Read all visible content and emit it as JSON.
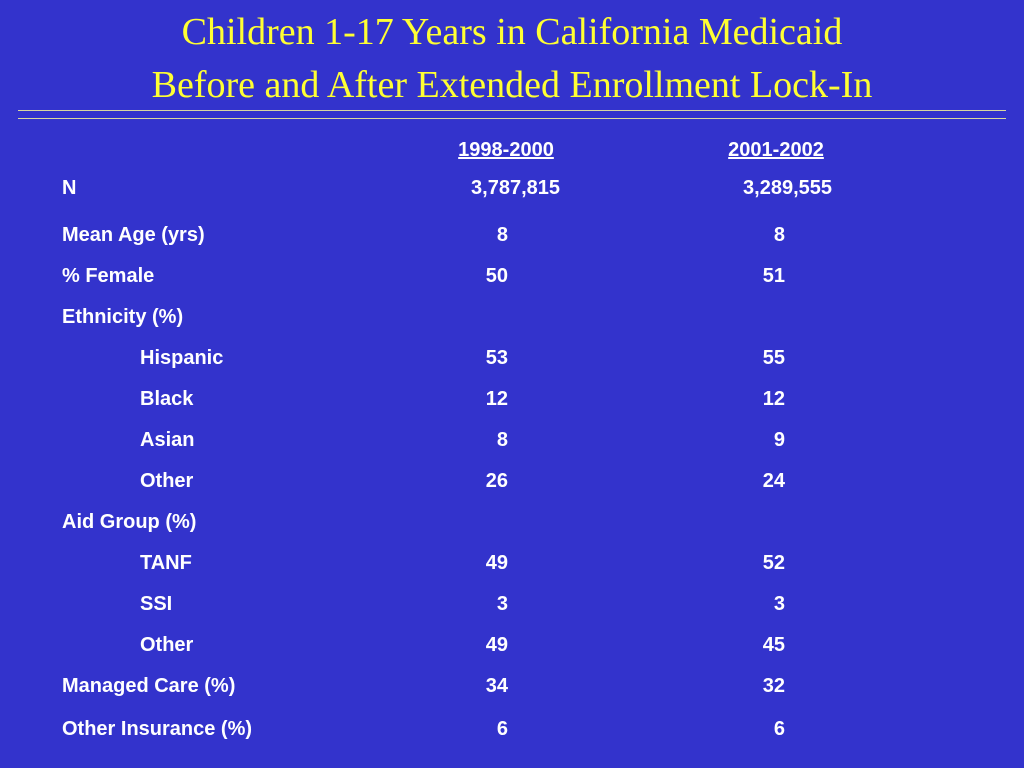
{
  "title": {
    "line1": "Children 1-17 Years in California Medicaid",
    "line2": "Before and After Extended Enrollment Lock-In"
  },
  "columns": [
    "1998-2000",
    "2001-2002"
  ],
  "rows": [
    {
      "label": "N",
      "v1": "3,787,815",
      "v2": "3,289,555",
      "indent": false
    },
    {
      "label": "Mean Age (yrs)",
      "v1": "8",
      "v2": "8",
      "indent": false
    },
    {
      "label": "% Female",
      "v1": "50",
      "v2": "51",
      "indent": false
    },
    {
      "label": "Ethnicity (%)",
      "v1": "",
      "v2": "",
      "indent": false
    },
    {
      "label": "Hispanic",
      "v1": "53",
      "v2": "55",
      "indent": true
    },
    {
      "label": "Black",
      "v1": "12",
      "v2": "12",
      "indent": true
    },
    {
      "label": "Asian",
      "v1": "8",
      "v2": "9",
      "indent": true
    },
    {
      "label": "Other",
      "v1": "26",
      "v2": "24",
      "indent": true
    },
    {
      "label": "Aid Group (%)",
      "v1": "",
      "v2": "",
      "indent": false
    },
    {
      "label": "TANF",
      "v1": "49",
      "v2": "52",
      "indent": true
    },
    {
      "label": "SSI",
      "v1": "3",
      "v2": "3",
      "indent": true
    },
    {
      "label": "Other",
      "v1": "49",
      "v2": "45",
      "indent": true
    },
    {
      "label": "Managed Care (%)",
      "v1": "34",
      "v2": "32",
      "indent": false
    },
    {
      "label": "Other Insurance (%)",
      "v1": "6",
      "v2": "6",
      "indent": false
    }
  ],
  "colors": {
    "background": "#3333cc",
    "title": "#ffff33",
    "text": "#ffffff"
  }
}
